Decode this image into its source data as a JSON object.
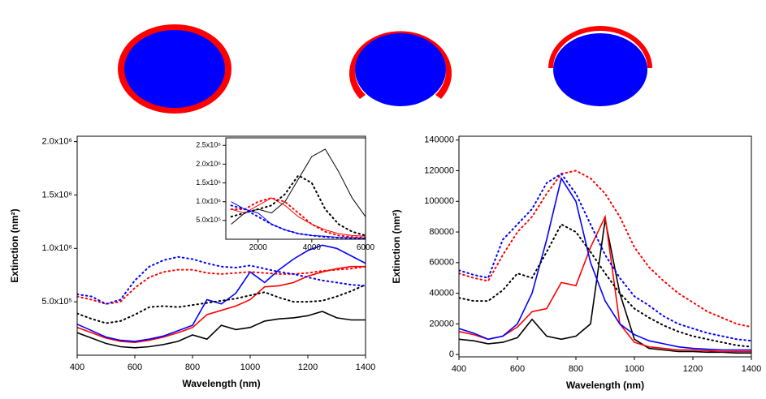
{
  "chart_data": [
    {
      "type": "line",
      "x_label": "Wavelength (nm)",
      "y_label": "Extinction (nm²)",
      "x": [
        400,
        450,
        500,
        550,
        600,
        650,
        700,
        750,
        800,
        850,
        900,
        950,
        1000,
        1050,
        1100,
        1150,
        1200,
        1250,
        1300,
        1350,
        1400
      ],
      "xlim": [
        400,
        1400
      ],
      "xticks": [
        400,
        600,
        800,
        1000,
        1200,
        1400
      ],
      "ylim": [
        0,
        2050000
      ],
      "yticks": [
        {
          "value": 500000,
          "label": "5.0x10⁵"
        },
        {
          "value": 1000000,
          "label": "1.0x10⁶"
        },
        {
          "value": 1500000,
          "label": "1.5x10⁶"
        },
        {
          "value": 2000000,
          "label": "2.0x10⁶"
        }
      ],
      "series": [
        {
          "color": "#000000",
          "dash": false,
          "values": [
            210000,
            160000,
            110000,
            80000,
            70000,
            80000,
            100000,
            130000,
            190000,
            150000,
            280000,
            240000,
            260000,
            320000,
            340000,
            350000,
            370000,
            410000,
            350000,
            330000,
            330000
          ]
        },
        {
          "color": "#ff0000",
          "dash": false,
          "values": [
            260000,
            210000,
            160000,
            130000,
            120000,
            140000,
            170000,
            210000,
            260000,
            380000,
            420000,
            460000,
            520000,
            640000,
            650000,
            680000,
            740000,
            780000,
            810000,
            830000,
            830000
          ]
        },
        {
          "color": "#0000ff",
          "dash": false,
          "values": [
            290000,
            230000,
            170000,
            140000,
            130000,
            150000,
            180000,
            230000,
            280000,
            520000,
            480000,
            580000,
            780000,
            680000,
            800000,
            900000,
            980000,
            1030000,
            1000000,
            930000,
            860000
          ]
        },
        {
          "color": "#000000",
          "dash": true,
          "values": [
            390000,
            340000,
            300000,
            320000,
            380000,
            450000,
            460000,
            450000,
            470000,
            490000,
            510000,
            530000,
            560000,
            590000,
            540000,
            500000,
            500000,
            510000,
            550000,
            600000,
            660000
          ]
        },
        {
          "color": "#ff0000",
          "dash": true,
          "values": [
            550000,
            520000,
            480000,
            500000,
            630000,
            730000,
            780000,
            800000,
            800000,
            770000,
            760000,
            770000,
            780000,
            770000,
            760000,
            760000,
            770000,
            790000,
            800000,
            810000,
            830000
          ]
        },
        {
          "color": "#0000ff",
          "dash": true,
          "values": [
            570000,
            550000,
            480000,
            520000,
            700000,
            830000,
            890000,
            920000,
            900000,
            860000,
            830000,
            820000,
            840000,
            810000,
            780000,
            760000,
            730000,
            700000,
            680000,
            660000,
            650000
          ]
        }
      ]
    },
    {
      "type": "line",
      "x": [
        1000,
        1500,
        2000,
        2500,
        3000,
        3500,
        4000,
        4500,
        5000,
        5500,
        6000
      ],
      "xlim": [
        800,
        6000
      ],
      "xticks": [
        2000,
        4000,
        6000
      ],
      "ylim": [
        0,
        2700000
      ],
      "yticks": [
        {
          "value": 500000,
          "label": "5.0x10⁵"
        },
        {
          "value": 1000000,
          "label": "1.0x10⁶"
        },
        {
          "value": 1500000,
          "label": "1.5x10⁶"
        },
        {
          "value": 2000000,
          "label": "2.0x10⁶"
        },
        {
          "value": 2500000,
          "label": "2.5x10⁶"
        }
      ],
      "series": [
        {
          "color": "#000000",
          "dash": false,
          "values": [
            400000,
            700000,
            800000,
            700000,
            1000000,
            1600000,
            2200000,
            2400000,
            1800000,
            1100000,
            600000
          ]
        },
        {
          "color": "#ff0000",
          "dash": false,
          "values": [
            800000,
            700000,
            900000,
            1100000,
            900000,
            600000,
            400000,
            250000,
            150000,
            100000,
            80000
          ]
        },
        {
          "color": "#0000ff",
          "dash": false,
          "values": [
            1000000,
            800000,
            700000,
            400000,
            250000,
            150000,
            100000,
            80000,
            50000,
            40000,
            30000
          ]
        },
        {
          "color": "#000000",
          "dash": true,
          "values": [
            600000,
            700000,
            800000,
            900000,
            1200000,
            1700000,
            1500000,
            800000,
            400000,
            200000,
            100000
          ]
        },
        {
          "color": "#ff0000",
          "dash": true,
          "values": [
            800000,
            800000,
            1000000,
            1100000,
            1000000,
            700000,
            400000,
            200000,
            100000,
            60000,
            40000
          ]
        },
        {
          "color": "#0000ff",
          "dash": true,
          "values": [
            900000,
            800000,
            600000,
            400000,
            250000,
            150000,
            100000,
            60000,
            40000,
            30000,
            20000
          ]
        }
      ]
    },
    {
      "type": "line",
      "x_label": "Wavelength (nm)",
      "y_label": "Extinction (nm²)",
      "x": [
        400,
        450,
        500,
        550,
        600,
        650,
        700,
        750,
        800,
        850,
        900,
        950,
        1000,
        1050,
        1100,
        1150,
        1200,
        1250,
        1300,
        1350,
        1400
      ],
      "xlim": [
        400,
        1400
      ],
      "xticks": [
        400,
        600,
        800,
        1000,
        1200,
        1400
      ],
      "ylim": [
        -1500,
        142500
      ],
      "yticks": [
        0,
        20000,
        40000,
        60000,
        80000,
        100000,
        120000,
        140000
      ],
      "series": [
        {
          "color": "#000000",
          "dash": false,
          "values": [
            10000,
            9000,
            7000,
            8000,
            11000,
            23000,
            12000,
            10000,
            12000,
            20000,
            88000,
            40000,
            10000,
            4000,
            3000,
            2000,
            2000,
            1500,
            1500,
            1000,
            1000
          ]
        },
        {
          "color": "#ff0000",
          "dash": false,
          "values": [
            15000,
            13000,
            10000,
            12000,
            18000,
            28000,
            30000,
            47000,
            45000,
            70000,
            90000,
            20000,
            8000,
            5000,
            4000,
            3000,
            3000,
            2500,
            2000,
            2000,
            2000
          ]
        },
        {
          "color": "#0000ff",
          "dash": false,
          "values": [
            17000,
            14000,
            10000,
            12000,
            20000,
            40000,
            75000,
            115000,
            100000,
            60000,
            35000,
            20000,
            13000,
            9000,
            7000,
            5000,
            4000,
            3500,
            3000,
            3000,
            3000
          ]
        },
        {
          "color": "#000000",
          "dash": true,
          "values": [
            37000,
            35000,
            35000,
            42000,
            53000,
            50000,
            67000,
            85000,
            80000,
            67000,
            53000,
            40000,
            30000,
            24000,
            19000,
            15000,
            12000,
            10000,
            8000,
            6000,
            5000
          ]
        },
        {
          "color": "#ff0000",
          "dash": true,
          "values": [
            53000,
            50000,
            48000,
            65000,
            80000,
            90000,
            105000,
            118000,
            120000,
            115000,
            105000,
            90000,
            70000,
            57000,
            48000,
            40000,
            34000,
            28000,
            24000,
            20000,
            18000
          ]
        },
        {
          "color": "#0000ff",
          "dash": true,
          "values": [
            55000,
            52000,
            50000,
            75000,
            85000,
            95000,
            112000,
            118000,
            105000,
            85000,
            65000,
            50000,
            38000,
            32000,
            25000,
            20000,
            17000,
            14000,
            12000,
            10000,
            9000
          ]
        }
      ]
    }
  ]
}
